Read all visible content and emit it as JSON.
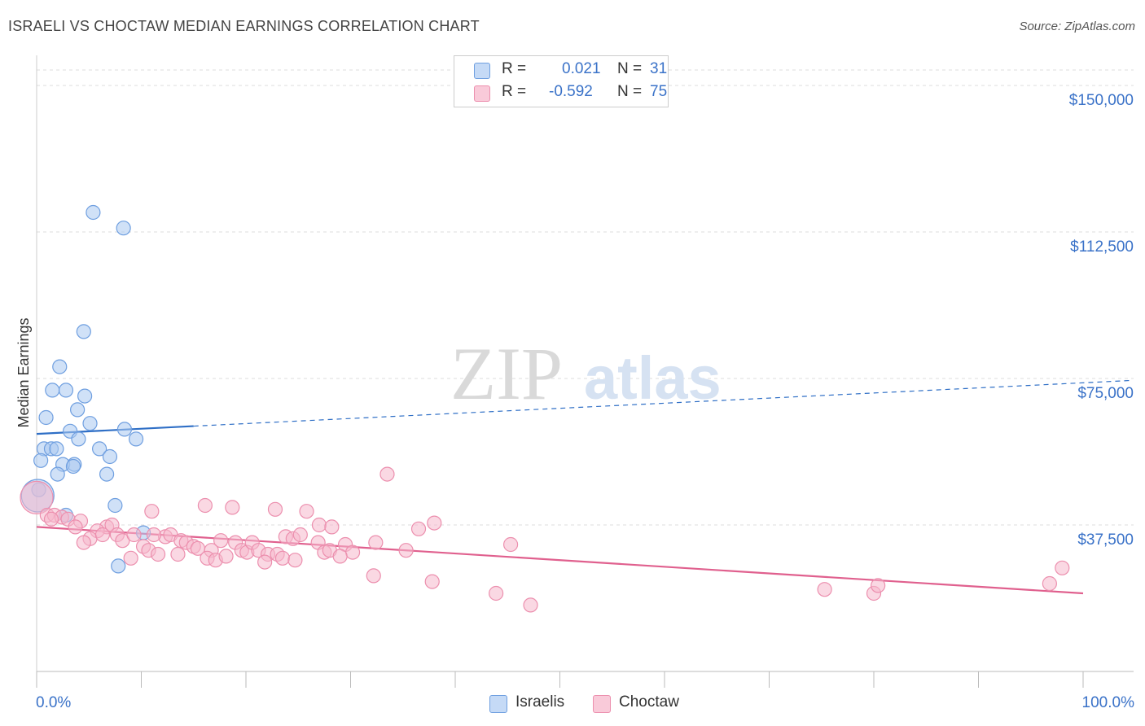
{
  "header": {
    "title": "ISRAELI VS CHOCTAW MEDIAN EARNINGS CORRELATION CHART",
    "source": "Source: ZipAtlas.com"
  },
  "legend": {
    "israelis": {
      "r_label": "R =",
      "r_value": "0.021",
      "n_label": "N =",
      "n_value": "31"
    },
    "choctaw": {
      "r_label": "R =",
      "r_value": "-0.592",
      "n_label": "N =",
      "n_value": "75"
    }
  },
  "bottom_legend": {
    "israelis": "Israelis",
    "choctaw": "Choctaw"
  },
  "watermark": {
    "zip": "ZIP",
    "atlas": "atlas"
  },
  "colors": {
    "blue_fill": "#a9c8f0",
    "blue_stroke": "#6f9fe0",
    "blue_line": "#2f6fc6",
    "pink_fill": "#f6b8cc",
    "pink_stroke": "#ec8fae",
    "pink_line": "#e0608e",
    "axis_label": "#3a72c8",
    "grid": "#dddddd"
  },
  "chart_data": {
    "type": "scatter",
    "title": "ISRAELI VS CHOCTAW MEDIAN EARNINGS CORRELATION CHART",
    "xlabel": "",
    "ylabel": "Median Earnings",
    "xlim": [
      0,
      100
    ],
    "ylim": [
      0,
      155000
    ],
    "x_tick_labels": [
      "0.0%",
      "100.0%"
    ],
    "y_ticks": [
      37500,
      75000,
      112500,
      150000
    ],
    "y_tick_labels": [
      "$37,500",
      "$75,000",
      "$112,500",
      "$150,000"
    ],
    "series": [
      {
        "name": "Israelis",
        "r": 0.021,
        "n": 31,
        "trend": {
          "x": [
            0,
            15
          ],
          "y": [
            60800,
            62800
          ],
          "dashed_to_x": 100,
          "dashed_end_y": 74500
        },
        "points": [
          [
            5.4,
            117500
          ],
          [
            8.3,
            113500
          ],
          [
            4.5,
            87000
          ],
          [
            2.2,
            78000
          ],
          [
            1.5,
            72000
          ],
          [
            2.8,
            72000
          ],
          [
            4.6,
            70500
          ],
          [
            3.9,
            67000
          ],
          [
            0.9,
            65000
          ],
          [
            5.1,
            63500
          ],
          [
            3.2,
            61500
          ],
          [
            8.4,
            62000
          ],
          [
            4.0,
            59500
          ],
          [
            9.5,
            59500
          ],
          [
            0.7,
            57000
          ],
          [
            1.4,
            57000
          ],
          [
            1.9,
            57000
          ],
          [
            6.0,
            57000
          ],
          [
            7.0,
            55000
          ],
          [
            0.4,
            54000
          ],
          [
            2.5,
            53000
          ],
          [
            3.6,
            53000
          ],
          [
            3.5,
            52500
          ],
          [
            2.0,
            50500
          ],
          [
            6.7,
            50500
          ],
          [
            0.2,
            46500
          ],
          [
            7.5,
            42500
          ],
          [
            2.8,
            40000
          ],
          [
            10.2,
            35500
          ],
          [
            7.8,
            27000
          ],
          [
            0.1,
            45000
          ]
        ]
      },
      {
        "name": "Choctaw",
        "r": -0.592,
        "n": 75,
        "trend": {
          "x": [
            0,
            100
          ],
          "y": [
            37000,
            20000
          ]
        },
        "points": [
          [
            0.0,
            44500
          ],
          [
            1.0,
            40000
          ],
          [
            1.7,
            40000
          ],
          [
            2.4,
            39500
          ],
          [
            1.4,
            39000
          ],
          [
            3.0,
            39000
          ],
          [
            4.2,
            38500
          ],
          [
            6.7,
            37000
          ],
          [
            7.2,
            37500
          ],
          [
            3.7,
            37000
          ],
          [
            5.8,
            36000
          ],
          [
            11.0,
            41000
          ],
          [
            16.1,
            42500
          ],
          [
            18.7,
            42000
          ],
          [
            22.8,
            41500
          ],
          [
            25.8,
            41000
          ],
          [
            33.5,
            50500
          ],
          [
            27.0,
            37500
          ],
          [
            28.2,
            37000
          ],
          [
            38.0,
            38000
          ],
          [
            5.1,
            34000
          ],
          [
            6.3,
            35000
          ],
          [
            4.5,
            33000
          ],
          [
            7.7,
            35000
          ],
          [
            8.2,
            33500
          ],
          [
            9.3,
            35000
          ],
          [
            10.2,
            32000
          ],
          [
            10.7,
            31000
          ],
          [
            12.3,
            34500
          ],
          [
            12.8,
            35000
          ],
          [
            13.8,
            33500
          ],
          [
            14.3,
            33000
          ],
          [
            15.0,
            32000
          ],
          [
            15.4,
            31500
          ],
          [
            16.7,
            31000
          ],
          [
            17.6,
            33500
          ],
          [
            19.0,
            33000
          ],
          [
            19.6,
            31000
          ],
          [
            20.1,
            30500
          ],
          [
            20.6,
            33000
          ],
          [
            21.2,
            31000
          ],
          [
            22.1,
            30000
          ],
          [
            23.0,
            30000
          ],
          [
            23.8,
            34500
          ],
          [
            24.5,
            34000
          ],
          [
            25.2,
            35000
          ],
          [
            26.9,
            33000
          ],
          [
            27.5,
            30500
          ],
          [
            28.0,
            31000
          ],
          [
            29.5,
            32500
          ],
          [
            30.2,
            30500
          ],
          [
            32.4,
            33000
          ],
          [
            35.3,
            31000
          ],
          [
            36.5,
            36500
          ],
          [
            9.0,
            29000
          ],
          [
            11.6,
            30000
          ],
          [
            13.5,
            30000
          ],
          [
            16.3,
            29000
          ],
          [
            17.1,
            28500
          ],
          [
            18.1,
            29500
          ],
          [
            21.8,
            28000
          ],
          [
            23.5,
            29000
          ],
          [
            24.7,
            28500
          ],
          [
            29.0,
            29500
          ],
          [
            32.2,
            24500
          ],
          [
            37.8,
            23000
          ],
          [
            43.9,
            20000
          ],
          [
            47.2,
            17000
          ],
          [
            45.3,
            32500
          ],
          [
            75.3,
            21000
          ],
          [
            80.0,
            20000
          ],
          [
            80.4,
            22000
          ],
          [
            96.8,
            22500
          ],
          [
            98.0,
            26500
          ],
          [
            11.2,
            35000
          ]
        ]
      }
    ]
  }
}
